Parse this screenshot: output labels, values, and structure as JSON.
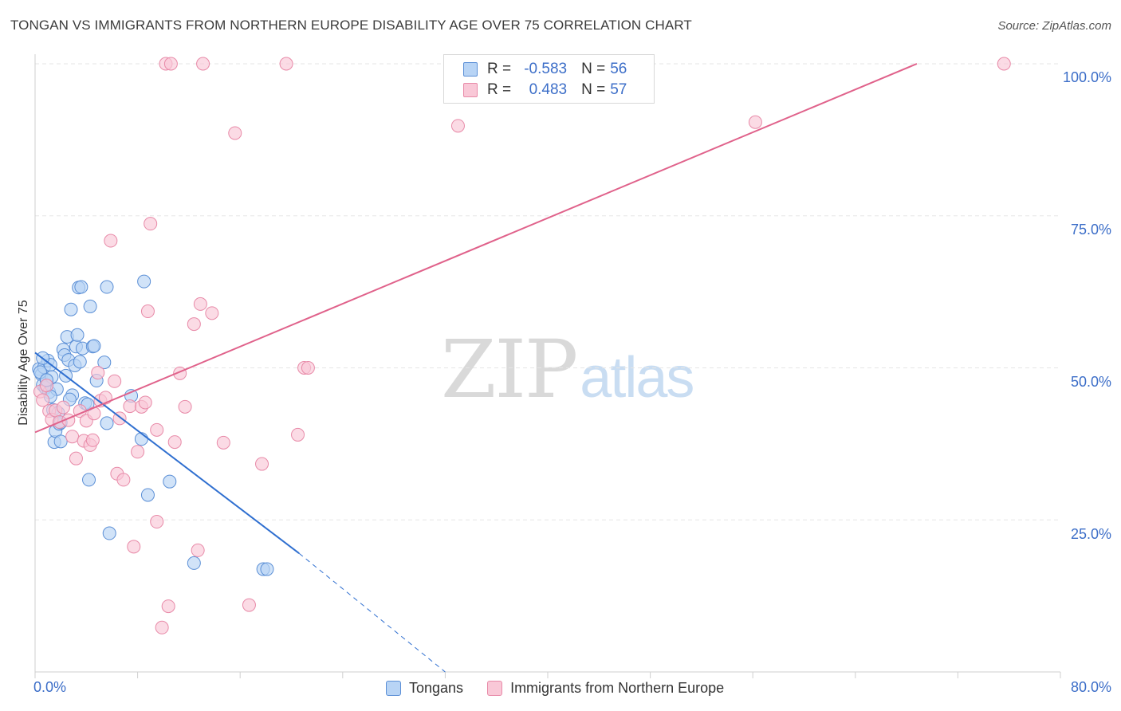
{
  "title": "TONGAN VS IMMIGRANTS FROM NORTHERN EUROPE DISABILITY AGE OVER 75 CORRELATION CHART",
  "source": "Source: ZipAtlas.com",
  "watermark": {
    "zip": "ZIP",
    "atlas": "atlas"
  },
  "legend": {
    "series1": {
      "r_label": "R =",
      "r_value": "-0.583",
      "n_label": "N =",
      "n_value": "56"
    },
    "series2": {
      "r_label": "R =",
      "r_value": "0.483",
      "n_label": "N =",
      "n_value": "57"
    }
  },
  "colors": {
    "blue_fill": "#b8d4f5",
    "blue_stroke": "#5b8fd6",
    "blue_line": "#2f6fd0",
    "pink_fill": "#f9c8d7",
    "pink_stroke": "#e88aa8",
    "pink_line": "#e0628b",
    "tick_text": "#3c6ec8",
    "grid": "#e6e6e6"
  },
  "chart_data": {
    "type": "scatter",
    "title": "TONGAN VS IMMIGRANTS FROM NORTHERN EUROPE DISABILITY AGE OVER 75 CORRELATION CHART",
    "xlabel": "",
    "ylabel": "Disability Age Over 75",
    "xlim": [
      0,
      80
    ],
    "ylim": [
      0,
      100
    ],
    "x_tick_labels": [
      "0.0%",
      "80.0%"
    ],
    "y_tick_labels": [
      "25.0%",
      "50.0%",
      "75.0%",
      "100.0%"
    ],
    "y_ticks": [
      25,
      50,
      75,
      100
    ],
    "grid": true,
    "legend_position": "top-center",
    "series": [
      {
        "name": "Tongans",
        "r": -0.583,
        "n": 56,
        "trend": {
          "x": [
            0,
            20.6
          ],
          "y": [
            52.5,
            19.5
          ],
          "dashed_to": [
            32,
            0
          ]
        },
        "points": [
          [
            0.3,
            49.8
          ],
          [
            0.5,
            48.9
          ],
          [
            0.6,
            47.2
          ],
          [
            0.7,
            50.1
          ],
          [
            0.8,
            46.7
          ],
          [
            0.9,
            47.9
          ],
          [
            1.0,
            51.2
          ],
          [
            1.1,
            46.0
          ],
          [
            1.2,
            50.5
          ],
          [
            1.3,
            48.5
          ],
          [
            1.4,
            43.1
          ],
          [
            1.5,
            37.8
          ],
          [
            1.6,
            39.6
          ],
          [
            1.8,
            42.6
          ],
          [
            1.9,
            40.8
          ],
          [
            2.0,
            41.0
          ],
          [
            2.0,
            37.9
          ],
          [
            2.2,
            53.0
          ],
          [
            2.3,
            52.1
          ],
          [
            2.4,
            48.7
          ],
          [
            2.5,
            55.1
          ],
          [
            2.6,
            51.3
          ],
          [
            2.8,
            59.6
          ],
          [
            2.9,
            45.5
          ],
          [
            3.1,
            50.4
          ],
          [
            3.2,
            53.5
          ],
          [
            3.3,
            55.4
          ],
          [
            3.4,
            63.2
          ],
          [
            3.6,
            63.3
          ],
          [
            3.7,
            53.2
          ],
          [
            3.9,
            44.2
          ],
          [
            4.1,
            44.0
          ],
          [
            4.2,
            31.6
          ],
          [
            4.3,
            60.1
          ],
          [
            4.5,
            53.5
          ],
          [
            4.6,
            53.6
          ],
          [
            4.8,
            47.9
          ],
          [
            5.4,
            50.9
          ],
          [
            5.6,
            40.9
          ],
          [
            5.6,
            63.3
          ],
          [
            5.8,
            22.8
          ],
          [
            7.5,
            45.4
          ],
          [
            8.3,
            38.3
          ],
          [
            8.5,
            64.2
          ],
          [
            8.8,
            29.1
          ],
          [
            10.5,
            31.3
          ],
          [
            12.4,
            17.9
          ],
          [
            17.8,
            16.9
          ],
          [
            18.1,
            16.9
          ],
          [
            0.4,
            49.3
          ],
          [
            0.9,
            48.0
          ],
          [
            1.7,
            46.5
          ],
          [
            2.7,
            44.8
          ],
          [
            3.5,
            51.0
          ],
          [
            1.2,
            45.3
          ],
          [
            0.6,
            51.6
          ]
        ]
      },
      {
        "name": "Immigrants from Northern Europe",
        "r": 0.483,
        "n": 57,
        "trend": {
          "x": [
            0,
            68.8
          ],
          "y": [
            39.4,
            100
          ]
        },
        "points": [
          [
            0.4,
            46.1
          ],
          [
            0.6,
            44.7
          ],
          [
            0.9,
            47.1
          ],
          [
            1.1,
            42.9
          ],
          [
            1.3,
            41.5
          ],
          [
            1.6,
            43.0
          ],
          [
            1.9,
            41.1
          ],
          [
            2.2,
            43.5
          ],
          [
            2.6,
            41.4
          ],
          [
            2.9,
            38.7
          ],
          [
            3.2,
            35.1
          ],
          [
            3.5,
            42.9
          ],
          [
            3.8,
            38.0
          ],
          [
            4.0,
            41.3
          ],
          [
            4.3,
            37.3
          ],
          [
            4.6,
            42.5
          ],
          [
            4.9,
            49.2
          ],
          [
            5.1,
            44.6
          ],
          [
            5.5,
            45.1
          ],
          [
            5.9,
            70.9
          ],
          [
            6.2,
            47.8
          ],
          [
            6.4,
            32.6
          ],
          [
            6.6,
            41.7
          ],
          [
            6.9,
            31.6
          ],
          [
            7.4,
            43.7
          ],
          [
            7.7,
            20.6
          ],
          [
            8.0,
            36.2
          ],
          [
            8.3,
            43.6
          ],
          [
            8.6,
            44.3
          ],
          [
            8.8,
            59.3
          ],
          [
            9.0,
            73.7
          ],
          [
            9.5,
            39.8
          ],
          [
            9.5,
            24.7
          ],
          [
            9.9,
            7.3
          ],
          [
            10.2,
            100.0
          ],
          [
            10.4,
            10.8
          ],
          [
            10.6,
            100.0
          ],
          [
            10.9,
            37.8
          ],
          [
            11.3,
            49.1
          ],
          [
            11.7,
            43.6
          ],
          [
            12.4,
            57.2
          ],
          [
            12.7,
            20.0
          ],
          [
            12.9,
            60.5
          ],
          [
            13.1,
            100.0
          ],
          [
            13.8,
            59.0
          ],
          [
            14.7,
            37.7
          ],
          [
            15.6,
            88.6
          ],
          [
            16.7,
            11.0
          ],
          [
            17.7,
            34.2
          ],
          [
            19.6,
            100.0
          ],
          [
            20.5,
            39.0
          ],
          [
            21.0,
            50.0
          ],
          [
            21.3,
            50.0
          ],
          [
            33.0,
            89.8
          ],
          [
            56.2,
            90.4
          ],
          [
            75.6,
            100.0
          ],
          [
            4.5,
            38.1
          ]
        ]
      }
    ]
  }
}
